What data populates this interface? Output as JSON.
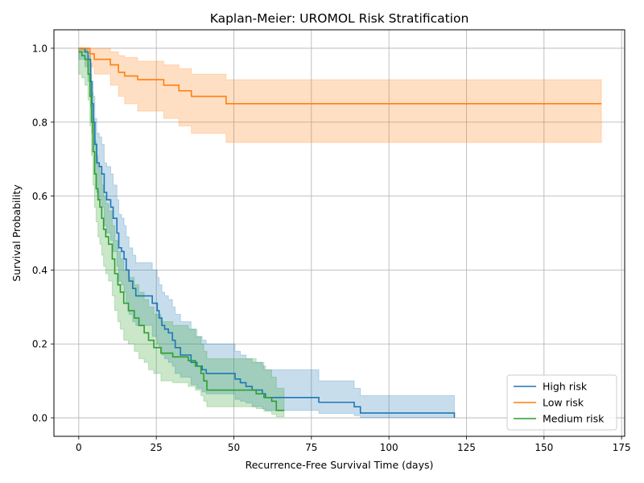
{
  "chart_data": {
    "type": "line",
    "title": "Kaplan-Meier: UROMOL Risk Stratification",
    "xlabel": "Recurrence-Free Survival Time (days)",
    "ylabel": "Survival Probability",
    "xlim": [
      -8,
      176
    ],
    "ylim": [
      -0.05,
      1.05
    ],
    "xticks": [
      0,
      25,
      50,
      75,
      100,
      125,
      150,
      175
    ],
    "yticks": [
      0.0,
      0.2,
      0.4,
      0.6,
      0.8,
      1.0
    ],
    "xtick_labels": [
      "0",
      "25",
      "50",
      "75",
      "100",
      "125",
      "150",
      "175"
    ],
    "ytick_labels": [
      "0.0",
      "0.2",
      "0.4",
      "0.6",
      "0.8",
      "1.0"
    ],
    "grid": true,
    "legend_position": "lower-right",
    "step": true,
    "confidence_bands": true,
    "series": [
      {
        "name": "High risk",
        "color": "#1f77b4",
        "points": [
          [
            0,
            1.0
          ],
          [
            2,
            0.99
          ],
          [
            3,
            0.97
          ],
          [
            3.8,
            0.91
          ],
          [
            4.2,
            0.85
          ],
          [
            4.7,
            0.8
          ],
          [
            5.2,
            0.74
          ],
          [
            5.8,
            0.69
          ],
          [
            6.6,
            0.68
          ],
          [
            7.4,
            0.66
          ],
          [
            8.2,
            0.61
          ],
          [
            9,
            0.59
          ],
          [
            10.3,
            0.57
          ],
          [
            11.1,
            0.54
          ],
          [
            12.3,
            0.5
          ],
          [
            12.9,
            0.46
          ],
          [
            13.8,
            0.45
          ],
          [
            14.6,
            0.43
          ],
          [
            15.3,
            0.4
          ],
          [
            16.2,
            0.37
          ],
          [
            17.4,
            0.35
          ],
          [
            18.4,
            0.33
          ],
          [
            23.7,
            0.31
          ],
          [
            25.3,
            0.29
          ],
          [
            25.9,
            0.27
          ],
          [
            26.8,
            0.25
          ],
          [
            27.7,
            0.24
          ],
          [
            28.9,
            0.23
          ],
          [
            30.2,
            0.21
          ],
          [
            31.1,
            0.19
          ],
          [
            32.8,
            0.17
          ],
          [
            36.2,
            0.15
          ],
          [
            38.1,
            0.14
          ],
          [
            39.8,
            0.13
          ],
          [
            41.1,
            0.12
          ],
          [
            50.4,
            0.105
          ],
          [
            52.1,
            0.095
          ],
          [
            53.9,
            0.085
          ],
          [
            55.9,
            0.075
          ],
          [
            59.2,
            0.065
          ],
          [
            60.2,
            0.055
          ],
          [
            77.4,
            0.042
          ],
          [
            88.8,
            0.03
          ],
          [
            90.8,
            0.013
          ],
          [
            121.1,
            0.0
          ]
        ],
        "ci_lower": [
          [
            0,
            0.97
          ],
          [
            2,
            0.95
          ],
          [
            3,
            0.91
          ],
          [
            3.8,
            0.84
          ],
          [
            4.2,
            0.77
          ],
          [
            4.7,
            0.72
          ],
          [
            5.2,
            0.66
          ],
          [
            5.8,
            0.61
          ],
          [
            6.6,
            0.59
          ],
          [
            7.4,
            0.57
          ],
          [
            8.2,
            0.52
          ],
          [
            9,
            0.5
          ],
          [
            10.3,
            0.48
          ],
          [
            11.1,
            0.45
          ],
          [
            12.3,
            0.41
          ],
          [
            12.9,
            0.37
          ],
          [
            13.8,
            0.36
          ],
          [
            14.6,
            0.34
          ],
          [
            15.3,
            0.31
          ],
          [
            16.2,
            0.28
          ],
          [
            17.4,
            0.26
          ],
          [
            18.4,
            0.25
          ],
          [
            23.7,
            0.22
          ],
          [
            25.3,
            0.2
          ],
          [
            25.9,
            0.19
          ],
          [
            26.8,
            0.17
          ],
          [
            27.7,
            0.16
          ],
          [
            28.9,
            0.15
          ],
          [
            30.2,
            0.14
          ],
          [
            31.1,
            0.12
          ],
          [
            32.8,
            0.11
          ],
          [
            36.2,
            0.09
          ],
          [
            38.1,
            0.08
          ],
          [
            39.8,
            0.07
          ],
          [
            41.1,
            0.065
          ],
          [
            50.4,
            0.05
          ],
          [
            52.1,
            0.045
          ],
          [
            53.9,
            0.04
          ],
          [
            55.9,
            0.03
          ],
          [
            59.2,
            0.025
          ],
          [
            60.2,
            0.02
          ],
          [
            77.4,
            0.012
          ],
          [
            88.8,
            0.006
          ],
          [
            90.8,
            0.001
          ],
          [
            121.1,
            0.0
          ]
        ],
        "ci_upper": [
          [
            0,
            1.0
          ],
          [
            2,
            1.0
          ],
          [
            3,
            0.99
          ],
          [
            3.8,
            0.96
          ],
          [
            4.2,
            0.91
          ],
          [
            4.7,
            0.87
          ],
          [
            5.2,
            0.81
          ],
          [
            5.8,
            0.77
          ],
          [
            6.6,
            0.76
          ],
          [
            7.4,
            0.74
          ],
          [
            8.2,
            0.69
          ],
          [
            9,
            0.68
          ],
          [
            10.3,
            0.66
          ],
          [
            11.1,
            0.63
          ],
          [
            12.3,
            0.59
          ],
          [
            12.9,
            0.55
          ],
          [
            13.8,
            0.54
          ],
          [
            14.6,
            0.52
          ],
          [
            15.3,
            0.49
          ],
          [
            16.2,
            0.46
          ],
          [
            17.4,
            0.44
          ],
          [
            18.4,
            0.42
          ],
          [
            23.7,
            0.4
          ],
          [
            25.3,
            0.38
          ],
          [
            25.9,
            0.36
          ],
          [
            26.8,
            0.34
          ],
          [
            27.7,
            0.33
          ],
          [
            28.9,
            0.32
          ],
          [
            30.2,
            0.3
          ],
          [
            31.1,
            0.28
          ],
          [
            32.8,
            0.26
          ],
          [
            36.2,
            0.24
          ],
          [
            38.1,
            0.22
          ],
          [
            39.8,
            0.21
          ],
          [
            41.1,
            0.2
          ],
          [
            50.4,
            0.18
          ],
          [
            52.1,
            0.17
          ],
          [
            53.9,
            0.16
          ],
          [
            55.9,
            0.15
          ],
          [
            59.2,
            0.14
          ],
          [
            60.2,
            0.13
          ],
          [
            77.4,
            0.1
          ],
          [
            88.8,
            0.08
          ],
          [
            90.8,
            0.06
          ],
          [
            121.1,
            0.06
          ]
        ]
      },
      {
        "name": "Low risk",
        "color": "#ff7f0e",
        "points": [
          [
            0,
            1.0
          ],
          [
            3.6,
            0.985
          ],
          [
            5,
            0.97
          ],
          [
            10.2,
            0.955
          ],
          [
            12.8,
            0.935
          ],
          [
            14.8,
            0.925
          ],
          [
            19,
            0.915
          ],
          [
            27.4,
            0.9
          ],
          [
            32.3,
            0.885
          ],
          [
            36.3,
            0.87
          ],
          [
            47.5,
            0.85
          ],
          [
            168.5,
            0.85
          ]
        ],
        "ci_lower": [
          [
            0,
            0.99
          ],
          [
            3.6,
            0.95
          ],
          [
            5,
            0.93
          ],
          [
            10.2,
            0.9
          ],
          [
            12.8,
            0.87
          ],
          [
            14.8,
            0.85
          ],
          [
            19,
            0.83
          ],
          [
            27.4,
            0.81
          ],
          [
            32.3,
            0.79
          ],
          [
            36.3,
            0.77
          ],
          [
            47.5,
            0.745
          ],
          [
            168.5,
            0.745
          ]
        ],
        "ci_upper": [
          [
            0,
            1.0
          ],
          [
            3.6,
            1.0
          ],
          [
            5,
            1.0
          ],
          [
            10.2,
            0.99
          ],
          [
            12.8,
            0.98
          ],
          [
            14.8,
            0.975
          ],
          [
            19,
            0.965
          ],
          [
            27.4,
            0.955
          ],
          [
            32.3,
            0.945
          ],
          [
            36.3,
            0.93
          ],
          [
            47.5,
            0.915
          ],
          [
            168.5,
            0.915
          ]
        ]
      },
      {
        "name": "Medium risk",
        "color": "#2ca02c",
        "points": [
          [
            0,
            0.99
          ],
          [
            1,
            0.98
          ],
          [
            2,
            0.97
          ],
          [
            3,
            0.93
          ],
          [
            3.6,
            0.87
          ],
          [
            4.1,
            0.8
          ],
          [
            4.6,
            0.72
          ],
          [
            5.1,
            0.66
          ],
          [
            5.6,
            0.62
          ],
          [
            6.2,
            0.59
          ],
          [
            6.8,
            0.57
          ],
          [
            7.4,
            0.54
          ],
          [
            8,
            0.51
          ],
          [
            8.7,
            0.49
          ],
          [
            9.6,
            0.47
          ],
          [
            10.8,
            0.43
          ],
          [
            11.6,
            0.39
          ],
          [
            12.6,
            0.36
          ],
          [
            13.4,
            0.34
          ],
          [
            14.5,
            0.31
          ],
          [
            16,
            0.29
          ],
          [
            17.9,
            0.27
          ],
          [
            19.4,
            0.25
          ],
          [
            21.1,
            0.23
          ],
          [
            22.5,
            0.21
          ],
          [
            24.2,
            0.19
          ],
          [
            26.5,
            0.175
          ],
          [
            30.3,
            0.165
          ],
          [
            35.3,
            0.155
          ],
          [
            37.6,
            0.14
          ],
          [
            39.4,
            0.12
          ],
          [
            40.3,
            0.1
          ],
          [
            41.3,
            0.075
          ],
          [
            57.2,
            0.065
          ],
          [
            59.7,
            0.055
          ],
          [
            62.2,
            0.045
          ],
          [
            63.7,
            0.02
          ],
          [
            66.2,
            0.02
          ]
        ],
        "ci_lower": [
          [
            0,
            0.93
          ],
          [
            1,
            0.92
          ],
          [
            2,
            0.9
          ],
          [
            3,
            0.86
          ],
          [
            3.6,
            0.79
          ],
          [
            4.1,
            0.71
          ],
          [
            4.6,
            0.63
          ],
          [
            5.1,
            0.57
          ],
          [
            5.6,
            0.53
          ],
          [
            6.2,
            0.49
          ],
          [
            6.8,
            0.47
          ],
          [
            7.4,
            0.44
          ],
          [
            8,
            0.41
          ],
          [
            8.7,
            0.39
          ],
          [
            9.6,
            0.37
          ],
          [
            10.8,
            0.33
          ],
          [
            11.6,
            0.29
          ],
          [
            12.6,
            0.26
          ],
          [
            13.4,
            0.24
          ],
          [
            14.5,
            0.21
          ],
          [
            16,
            0.2
          ],
          [
            17.9,
            0.18
          ],
          [
            19.4,
            0.16
          ],
          [
            21.1,
            0.15
          ],
          [
            22.5,
            0.13
          ],
          [
            24.2,
            0.12
          ],
          [
            26.5,
            0.1
          ],
          [
            30.3,
            0.095
          ],
          [
            35.3,
            0.085
          ],
          [
            37.6,
            0.075
          ],
          [
            39.4,
            0.06
          ],
          [
            40.3,
            0.045
          ],
          [
            41.3,
            0.03
          ],
          [
            57.2,
            0.025
          ],
          [
            59.7,
            0.018
          ],
          [
            62.2,
            0.01
          ],
          [
            63.7,
            0.003
          ],
          [
            66.2,
            0.003
          ]
        ],
        "ci_upper": [
          [
            0,
            1.0
          ],
          [
            1,
            1.0
          ],
          [
            2,
            1.0
          ],
          [
            3,
            0.98
          ],
          [
            3.6,
            0.93
          ],
          [
            4.1,
            0.88
          ],
          [
            4.6,
            0.81
          ],
          [
            5.1,
            0.75
          ],
          [
            5.6,
            0.71
          ],
          [
            6.2,
            0.68
          ],
          [
            6.8,
            0.66
          ],
          [
            7.4,
            0.63
          ],
          [
            8,
            0.6
          ],
          [
            8.7,
            0.58
          ],
          [
            9.6,
            0.56
          ],
          [
            10.8,
            0.52
          ],
          [
            11.6,
            0.48
          ],
          [
            12.6,
            0.45
          ],
          [
            13.4,
            0.43
          ],
          [
            14.5,
            0.4
          ],
          [
            16,
            0.38
          ],
          [
            17.9,
            0.36
          ],
          [
            19.4,
            0.34
          ],
          [
            21.1,
            0.32
          ],
          [
            22.5,
            0.3
          ],
          [
            24.2,
            0.28
          ],
          [
            26.5,
            0.26
          ],
          [
            30.3,
            0.25
          ],
          [
            35.3,
            0.24
          ],
          [
            37.6,
            0.22
          ],
          [
            39.4,
            0.2
          ],
          [
            40.3,
            0.18
          ],
          [
            41.3,
            0.16
          ],
          [
            57.2,
            0.15
          ],
          [
            59.7,
            0.13
          ],
          [
            62.2,
            0.11
          ],
          [
            63.7,
            0.08
          ],
          [
            66.2,
            0.08
          ]
        ]
      }
    ]
  }
}
